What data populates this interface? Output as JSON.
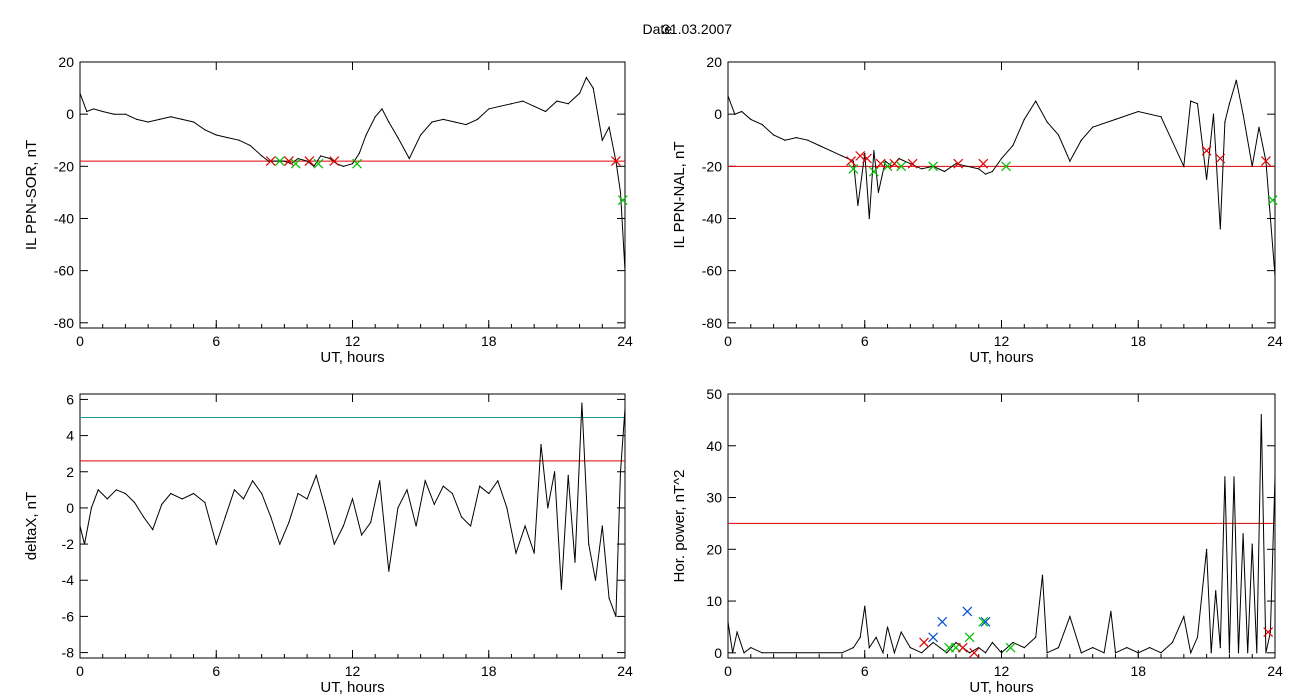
{
  "header": {
    "date_label": "Date:",
    "date_value": "31.03.2007"
  },
  "colors": {
    "series": "#000000",
    "threshold": "#e00000",
    "upper_threshold": "#1a9a9a",
    "blue_segment": "#0050d0",
    "marker_red": "#e00000",
    "marker_green": "#00c000",
    "marker_blue": "#0050d0"
  },
  "chart_data": [
    {
      "type": "line",
      "id": "sor",
      "ylabel": "IL PPN-SOR, nT",
      "xlabel": "UT, hours",
      "xlim": [
        0,
        24
      ],
      "ylim": [
        -82,
        20
      ],
      "xticks": [
        0,
        6,
        12,
        18,
        24
      ],
      "yticks": [
        20,
        0,
        -20,
        -40,
        -60,
        -80
      ],
      "thresholds": [
        {
          "y": -18,
          "color": "red"
        }
      ],
      "series": [
        {
          "x": [
            0,
            0.3,
            0.6,
            1,
            1.5,
            2,
            2.5,
            3,
            3.5,
            4,
            4.5,
            5,
            5.5,
            6,
            6.5,
            7,
            7.5,
            8,
            8.3,
            8.6,
            9,
            9.3,
            9.6,
            10,
            10.3,
            10.6,
            11,
            11.3,
            11.6,
            12,
            12.3,
            12.6,
            13,
            13.3,
            13.6,
            14,
            14.5,
            15,
            15.5,
            16,
            16.5,
            17,
            17.5,
            18,
            18.5,
            19,
            19.5,
            20,
            20.5,
            21,
            21.5,
            22,
            22.3,
            22.6,
            23,
            23.3,
            23.6,
            23.8,
            24
          ],
          "y": [
            8,
            1,
            2,
            1,
            0,
            0,
            -2,
            -3,
            -2,
            -1,
            -2,
            -3,
            -6,
            -8,
            -9,
            -10,
            -12,
            -16,
            -18,
            -18,
            -18,
            -19,
            -17,
            -18,
            -20,
            -16,
            -17,
            -19,
            -20,
            -19,
            -15,
            -8,
            -1,
            2,
            -3,
            -9,
            -17,
            -8,
            -3,
            -2,
            -3,
            -4,
            -2,
            2,
            3,
            4,
            5,
            3,
            1,
            5,
            4,
            8,
            14,
            10,
            -10,
            -5,
            -18,
            -30,
            -60
          ]
        }
      ],
      "markers": [
        {
          "x": 8.4,
          "y": -18,
          "color": "red"
        },
        {
          "x": 8.8,
          "y": -18,
          "color": "green"
        },
        {
          "x": 9.2,
          "y": -18,
          "color": "red"
        },
        {
          "x": 9.5,
          "y": -19,
          "color": "green"
        },
        {
          "x": 10.1,
          "y": -18,
          "color": "red"
        },
        {
          "x": 10.5,
          "y": -19,
          "color": "green"
        },
        {
          "x": 11.2,
          "y": -18,
          "color": "red"
        },
        {
          "x": 12.2,
          "y": -19,
          "color": "green"
        },
        {
          "x": 23.6,
          "y": -18,
          "color": "red"
        },
        {
          "x": 23.9,
          "y": -33,
          "color": "green"
        }
      ]
    },
    {
      "type": "line",
      "id": "nal",
      "ylabel": "IL PPN-NAL, nT",
      "xlabel": "UT, hours",
      "xlim": [
        0,
        24
      ],
      "ylim": [
        -82,
        20
      ],
      "xticks": [
        0,
        6,
        12,
        18,
        24
      ],
      "yticks": [
        20,
        0,
        -20,
        -40,
        -60,
        -80
      ],
      "thresholds": [
        {
          "y": -20,
          "color": "red"
        }
      ],
      "series": [
        {
          "x": [
            0,
            0.3,
            0.6,
            1,
            1.5,
            2,
            2.5,
            3,
            3.5,
            4,
            4.5,
            5,
            5.5,
            5.7,
            6,
            6.2,
            6.4,
            6.6,
            6.9,
            7.2,
            7.5,
            8,
            8.5,
            9,
            9.5,
            10,
            10.5,
            11,
            11.3,
            11.6,
            12,
            12.5,
            13,
            13.5,
            14,
            14.5,
            15,
            15.5,
            16,
            17,
            18,
            19,
            20,
            20.3,
            20.6,
            21,
            21.3,
            21.6,
            21.8,
            22,
            22.3,
            22.6,
            23,
            23.3,
            23.6,
            24
          ],
          "y": [
            7,
            0,
            1,
            -2,
            -4,
            -8,
            -10,
            -9,
            -10,
            -12,
            -14,
            -16,
            -18,
            -35,
            -15,
            -40,
            -14,
            -30,
            -18,
            -20,
            -17,
            -19,
            -21,
            -20,
            -22,
            -19,
            -20,
            -21,
            -23,
            -22,
            -17,
            -12,
            -2,
            5,
            -3,
            -8,
            -18,
            -10,
            -5,
            -2,
            1,
            -1,
            -20,
            5,
            4,
            -25,
            0,
            -44,
            -3,
            4,
            13,
            0,
            -20,
            -5,
            -18,
            -62
          ]
        }
      ],
      "markers": [
        {
          "x": 5.4,
          "y": -18,
          "color": "red"
        },
        {
          "x": 5.5,
          "y": -21,
          "color": "green"
        },
        {
          "x": 5.8,
          "y": -16,
          "color": "red"
        },
        {
          "x": 6.1,
          "y": -17,
          "color": "red"
        },
        {
          "x": 6.4,
          "y": -22,
          "color": "green"
        },
        {
          "x": 6.7,
          "y": -19,
          "color": "red"
        },
        {
          "x": 7.0,
          "y": -20,
          "color": "green"
        },
        {
          "x": 7.3,
          "y": -19,
          "color": "red"
        },
        {
          "x": 7.6,
          "y": -20,
          "color": "green"
        },
        {
          "x": 8.1,
          "y": -19,
          "color": "red"
        },
        {
          "x": 9.0,
          "y": -20,
          "color": "green"
        },
        {
          "x": 10.1,
          "y": -19,
          "color": "red"
        },
        {
          "x": 11.2,
          "y": -19,
          "color": "red"
        },
        {
          "x": 12.2,
          "y": -20,
          "color": "green"
        },
        {
          "x": 21.0,
          "y": -14,
          "color": "red"
        },
        {
          "x": 21.6,
          "y": -17,
          "color": "red"
        },
        {
          "x": 23.6,
          "y": -18,
          "color": "red"
        },
        {
          "x": 23.9,
          "y": -33,
          "color": "green"
        }
      ]
    },
    {
      "type": "line",
      "id": "deltax",
      "ylabel": "deltaX, nT",
      "xlabel": "UT, hours",
      "xlim": [
        0,
        24
      ],
      "ylim": [
        -8.3,
        6.3
      ],
      "xticks": [
        0,
        6,
        12,
        18,
        24
      ],
      "yticks": [
        6,
        4,
        2,
        0,
        -2,
        -4,
        -6,
        -8
      ],
      "thresholds": [
        {
          "y": 5.0,
          "color": "teal"
        },
        {
          "y": 2.6,
          "color": "red"
        }
      ],
      "series": [
        {
          "x": [
            0,
            0.2,
            0.5,
            0.8,
            1.2,
            1.6,
            2,
            2.4,
            2.8,
            3.2,
            3.6,
            4,
            4.5,
            5,
            5.5,
            6,
            6.4,
            6.8,
            7.2,
            7.6,
            8,
            8.4,
            8.8,
            9.2,
            9.6,
            10,
            10.4,
            10.8,
            11.2,
            11.6,
            12,
            12.4,
            12.8,
            13.2,
            13.6,
            14,
            14.4,
            14.8,
            15.2,
            15.6,
            16,
            16.4,
            16.8,
            17.2,
            17.6,
            18,
            18.4,
            18.8,
            19.2,
            19.6,
            20,
            20.3,
            20.6,
            20.9,
            21.2,
            21.5,
            21.8,
            22.1,
            22.4,
            22.7,
            23,
            23.3,
            23.6,
            23.8,
            24
          ],
          "y": [
            -1,
            -2,
            0,
            1,
            0.5,
            1,
            0.8,
            0.3,
            -0.5,
            -1.2,
            0.2,
            0.8,
            0.5,
            0.8,
            0.3,
            -2,
            -0.5,
            1,
            0.5,
            1.5,
            0.8,
            -0.5,
            -2,
            -0.8,
            0.8,
            0.5,
            1.8,
            0,
            -2,
            -1,
            0.5,
            -1.5,
            -0.8,
            1.5,
            -3.5,
            0,
            1,
            -1,
            1.5,
            0.2,
            1.2,
            0.8,
            -0.5,
            -1,
            1.2,
            0.8,
            1.5,
            0,
            -2.5,
            -1,
            -2.5,
            3.5,
            0,
            2,
            -4.5,
            1.8,
            -3,
            5.8,
            -2,
            -4,
            -1,
            -5,
            -6,
            2,
            5.5
          ]
        }
      ],
      "markers": []
    },
    {
      "type": "line",
      "id": "power",
      "ylabel": "Hor. power, nT^2",
      "xlabel": "UT, hours",
      "xlim": [
        0,
        24
      ],
      "ylim": [
        -1,
        50
      ],
      "xticks": [
        0,
        6,
        12,
        18,
        24
      ],
      "yticks": [
        50,
        40,
        30,
        20,
        10,
        0
      ],
      "thresholds": [
        {
          "y": 25,
          "color": "red"
        }
      ],
      "series": [
        {
          "x": [
            0,
            0.2,
            0.4,
            0.7,
            1,
            1.5,
            2,
            3,
            4,
            5,
            5.5,
            5.8,
            6,
            6.2,
            6.5,
            6.8,
            7,
            7.3,
            7.6,
            8,
            8.5,
            9,
            9.3,
            9.6,
            10,
            10.3,
            10.6,
            11,
            11.3,
            11.6,
            12,
            12.5,
            13,
            13.5,
            13.8,
            14,
            14.5,
            15,
            15.5,
            16,
            16.5,
            16.8,
            17,
            17.5,
            18,
            18.5,
            19,
            19.5,
            20,
            20.3,
            20.6,
            21,
            21.2,
            21.4,
            21.6,
            21.8,
            22,
            22.2,
            22.4,
            22.6,
            22.8,
            23,
            23.2,
            23.4,
            23.6,
            23.8,
            24
          ],
          "y": [
            6,
            0,
            4,
            0,
            1,
            0,
            0,
            0,
            0,
            0,
            1,
            3,
            9,
            1,
            3,
            0,
            5,
            0,
            4,
            1,
            0,
            2,
            1,
            0,
            2,
            1,
            0,
            1,
            0,
            2,
            0,
            2,
            1,
            3,
            15,
            0,
            1,
            7,
            0,
            1,
            0,
            8,
            0,
            1,
            0,
            1,
            0,
            2,
            7,
            0,
            3,
            20,
            0,
            12,
            1,
            34,
            0,
            34,
            0,
            23,
            0,
            21,
            0,
            46,
            0,
            4,
            34
          ]
        }
      ],
      "markers": [
        {
          "x": 8.6,
          "y": 2,
          "color": "red"
        },
        {
          "x": 9.0,
          "y": 3,
          "color": "blue"
        },
        {
          "x": 9.4,
          "y": 6,
          "color": "blue"
        },
        {
          "x": 9.7,
          "y": 1,
          "color": "green"
        },
        {
          "x": 10.0,
          "y": 1,
          "color": "green"
        },
        {
          "x": 10.3,
          "y": 1,
          "color": "red"
        },
        {
          "x": 10.5,
          "y": 8,
          "color": "blue"
        },
        {
          "x": 10.6,
          "y": 3,
          "color": "green"
        },
        {
          "x": 10.8,
          "y": 0,
          "color": "red"
        },
        {
          "x": 11.2,
          "y": 6,
          "color": "green"
        },
        {
          "x": 11.3,
          "y": 6,
          "color": "blue"
        },
        {
          "x": 12.4,
          "y": 1,
          "color": "green"
        },
        {
          "x": 23.7,
          "y": 4,
          "color": "red"
        }
      ]
    }
  ]
}
